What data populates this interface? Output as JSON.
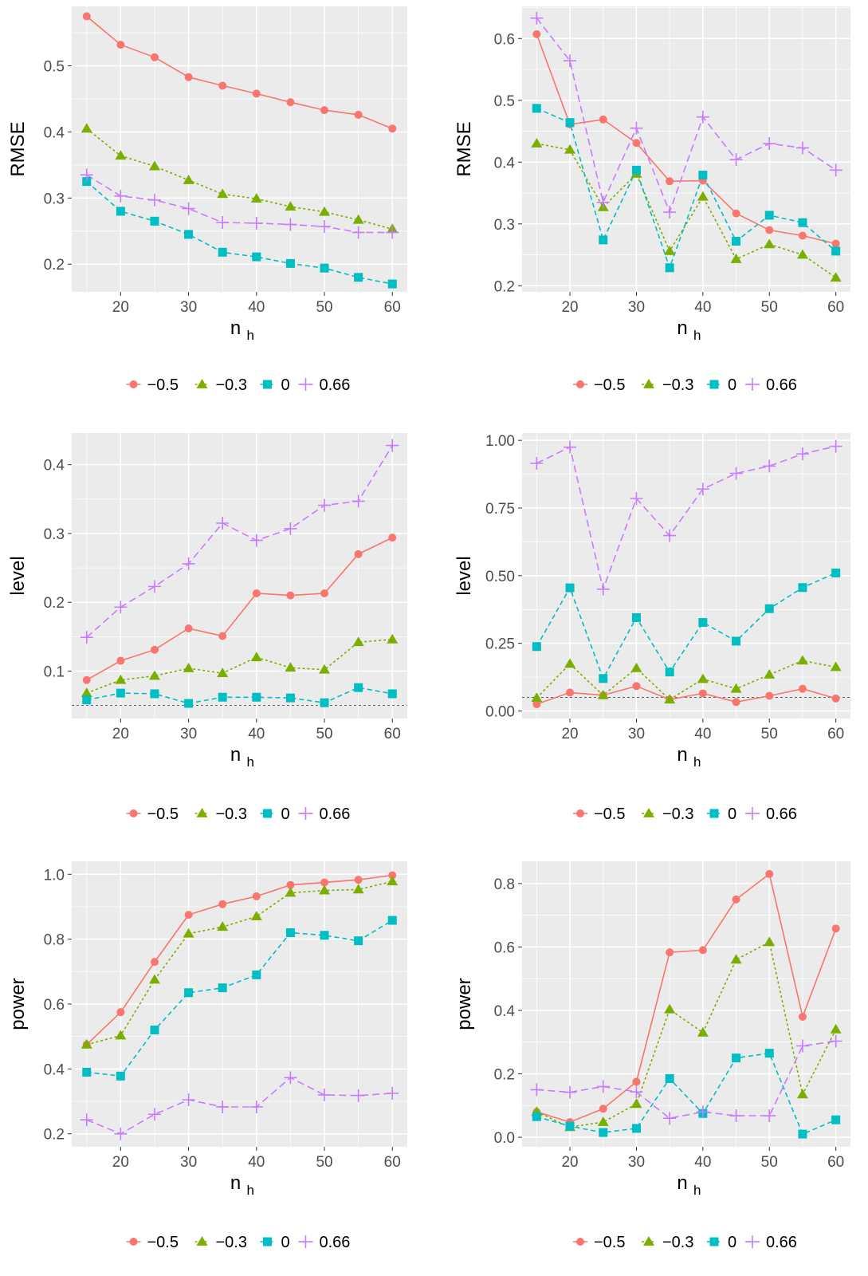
{
  "chart_data": [
    {
      "type": "line",
      "xlabel": "n",
      "xlabel_sub": "h",
      "ylabel": "RMSE",
      "xlim": [
        12.8,
        62.2
      ],
      "ylim": [
        0.158,
        0.59
      ],
      "x": [
        15,
        20,
        25,
        30,
        35,
        40,
        45,
        50,
        55,
        60
      ],
      "xticks": [
        20,
        30,
        40,
        50,
        60
      ],
      "yticks": [
        0.2,
        0.3,
        0.4,
        0.5
      ],
      "ytick_labels": [
        "0.2",
        "0.3",
        "0.4",
        "0.5"
      ],
      "reference_line": null,
      "legend_position": "bottom",
      "series": [
        {
          "name": "−0.5",
          "color": "#F8766D",
          "marker": "circle",
          "dash": "solid",
          "values": [
            0.575,
            0.532,
            0.513,
            0.483,
            0.47,
            0.458,
            0.445,
            0.433,
            0.426,
            0.405
          ]
        },
        {
          "name": "−0.3",
          "color": "#7CAE00",
          "marker": "triangle",
          "dash": "dotted",
          "values": [
            0.405,
            0.364,
            0.348,
            0.327,
            0.306,
            0.299,
            0.287,
            0.279,
            0.267,
            0.253
          ]
        },
        {
          "name": "0",
          "color": "#00BFC4",
          "marker": "square",
          "dash": "dashed",
          "values": [
            0.325,
            0.28,
            0.265,
            0.245,
            0.218,
            0.211,
            0.201,
            0.194,
            0.18,
            0.17
          ]
        },
        {
          "name": "0.66",
          "color": "#C77CFF",
          "marker": "plus",
          "dash": "longdash",
          "values": [
            0.335,
            0.303,
            0.297,
            0.284,
            0.263,
            0.262,
            0.26,
            0.257,
            0.248,
            0.248
          ]
        }
      ]
    },
    {
      "type": "line",
      "xlabel": "n",
      "xlabel_sub": "h",
      "ylabel": "RMSE",
      "xlim": [
        12.8,
        62.2
      ],
      "ylim": [
        0.19,
        0.652
      ],
      "x": [
        15,
        20,
        25,
        30,
        35,
        40,
        45,
        50,
        55,
        60
      ],
      "xticks": [
        20,
        30,
        40,
        50,
        60
      ],
      "yticks": [
        0.2,
        0.3,
        0.4,
        0.5,
        0.6
      ],
      "ytick_labels": [
        "0.2",
        "0.3",
        "0.4",
        "0.5",
        "0.6"
      ],
      "reference_line": null,
      "legend_position": "bottom",
      "series": [
        {
          "name": "−0.5",
          "color": "#F8766D",
          "marker": "circle",
          "dash": "solid",
          "values": [
            0.607,
            0.461,
            0.469,
            0.431,
            0.369,
            0.37,
            0.317,
            0.29,
            0.281,
            0.268
          ]
        },
        {
          "name": "−0.3",
          "color": "#7CAE00",
          "marker": "triangle",
          "dash": "dotted",
          "values": [
            0.43,
            0.42,
            0.327,
            0.381,
            0.256,
            0.344,
            0.243,
            0.267,
            0.25,
            0.213
          ]
        },
        {
          "name": "0",
          "color": "#00BFC4",
          "marker": "square",
          "dash": "dashed",
          "values": [
            0.487,
            0.464,
            0.274,
            0.387,
            0.229,
            0.379,
            0.272,
            0.314,
            0.302,
            0.256
          ]
        },
        {
          "name": "0.66",
          "color": "#C77CFF",
          "marker": "plus",
          "dash": "longdash",
          "values": [
            0.633,
            0.564,
            0.335,
            0.455,
            0.319,
            0.473,
            0.404,
            0.43,
            0.423,
            0.387
          ]
        }
      ]
    },
    {
      "type": "line",
      "xlabel": "n",
      "xlabel_sub": "h",
      "ylabel": "level",
      "xlim": [
        12.8,
        62.2
      ],
      "ylim": [
        0.031,
        0.446
      ],
      "x": [
        15,
        20,
        25,
        30,
        35,
        40,
        45,
        50,
        55,
        60
      ],
      "xticks": [
        20,
        30,
        40,
        50,
        60
      ],
      "yticks": [
        0.1,
        0.2,
        0.3,
        0.4
      ],
      "ytick_labels": [
        "0.1",
        "0.2",
        "0.3",
        "0.4"
      ],
      "reference_line": 0.05,
      "legend_position": "bottom",
      "series": [
        {
          "name": "−0.5",
          "color": "#F8766D",
          "marker": "circle",
          "dash": "solid",
          "values": [
            0.087,
            0.115,
            0.131,
            0.162,
            0.151,
            0.213,
            0.21,
            0.213,
            0.27,
            0.294
          ]
        },
        {
          "name": "−0.3",
          "color": "#7CAE00",
          "marker": "triangle",
          "dash": "dotted",
          "values": [
            0.068,
            0.087,
            0.093,
            0.104,
            0.097,
            0.12,
            0.105,
            0.102,
            0.142,
            0.146
          ]
        },
        {
          "name": "0",
          "color": "#00BFC4",
          "marker": "square",
          "dash": "dashed",
          "values": [
            0.058,
            0.068,
            0.067,
            0.053,
            0.062,
            0.062,
            0.061,
            0.054,
            0.076,
            0.067
          ]
        },
        {
          "name": "0.66",
          "color": "#C77CFF",
          "marker": "plus",
          "dash": "longdash",
          "values": [
            0.149,
            0.193,
            0.223,
            0.256,
            0.315,
            0.29,
            0.307,
            0.341,
            0.347,
            0.428
          ]
        }
      ]
    },
    {
      "type": "line",
      "xlabel": "n",
      "xlabel_sub": "h",
      "ylabel": "level",
      "xlim": [
        12.8,
        62.2
      ],
      "ylim": [
        -0.028,
        1.027
      ],
      "x": [
        15,
        20,
        25,
        30,
        35,
        40,
        45,
        50,
        55,
        60
      ],
      "xticks": [
        20,
        30,
        40,
        50,
        60
      ],
      "yticks": [
        0.0,
        0.25,
        0.5,
        0.75,
        1.0
      ],
      "ytick_labels": [
        "0.00",
        "0.25",
        "0.50",
        "0.75",
        "1.00"
      ],
      "reference_line": 0.05,
      "legend_position": "bottom",
      "series": [
        {
          "name": "−0.5",
          "color": "#F8766D",
          "marker": "circle",
          "dash": "solid",
          "values": [
            0.025,
            0.068,
            0.058,
            0.092,
            0.042,
            0.065,
            0.033,
            0.056,
            0.082,
            0.046
          ]
        },
        {
          "name": "−0.3",
          "color": "#7CAE00",
          "marker": "triangle",
          "dash": "dotted",
          "values": [
            0.048,
            0.174,
            0.058,
            0.158,
            0.042,
            0.118,
            0.082,
            0.134,
            0.186,
            0.162
          ]
        },
        {
          "name": "0",
          "color": "#00BFC4",
          "marker": "square",
          "dash": "dashed",
          "values": [
            0.238,
            0.455,
            0.12,
            0.345,
            0.144,
            0.327,
            0.258,
            0.378,
            0.456,
            0.51
          ]
        },
        {
          "name": "0.66",
          "color": "#C77CFF",
          "marker": "plus",
          "dash": "longdash",
          "values": [
            0.915,
            0.975,
            0.45,
            0.785,
            0.648,
            0.82,
            0.878,
            0.905,
            0.95,
            0.978
          ]
        }
      ]
    },
    {
      "type": "line",
      "xlabel": "n",
      "xlabel_sub": "h",
      "ylabel": "power",
      "xlim": [
        12.8,
        62.2
      ],
      "ylim": [
        0.16,
        1.04
      ],
      "x": [
        15,
        20,
        25,
        30,
        35,
        40,
        45,
        50,
        55,
        60
      ],
      "xticks": [
        20,
        30,
        40,
        50,
        60
      ],
      "yticks": [
        0.2,
        0.4,
        0.6,
        0.8,
        1.0
      ],
      "ytick_labels": [
        "0.2",
        "0.4",
        "0.6",
        "0.8",
        "1.0"
      ],
      "reference_line": null,
      "legend_position": "bottom",
      "series": [
        {
          "name": "−0.5",
          "color": "#F8766D",
          "marker": "circle",
          "dash": "solid",
          "values": [
            0.475,
            0.575,
            0.73,
            0.875,
            0.908,
            0.932,
            0.967,
            0.975,
            0.983,
            0.997
          ]
        },
        {
          "name": "−0.3",
          "color": "#7CAE00",
          "marker": "triangle",
          "dash": "dotted",
          "values": [
            0.475,
            0.503,
            0.675,
            0.817,
            0.838,
            0.87,
            0.943,
            0.95,
            0.953,
            0.978
          ]
        },
        {
          "name": "0",
          "color": "#00BFC4",
          "marker": "square",
          "dash": "dashed",
          "values": [
            0.39,
            0.378,
            0.52,
            0.635,
            0.65,
            0.69,
            0.82,
            0.812,
            0.795,
            0.858
          ]
        },
        {
          "name": "0.66",
          "color": "#C77CFF",
          "marker": "plus",
          "dash": "longdash",
          "values": [
            0.243,
            0.2,
            0.26,
            0.305,
            0.283,
            0.283,
            0.373,
            0.32,
            0.318,
            0.325
          ]
        }
      ]
    },
    {
      "type": "line",
      "xlabel": "n",
      "xlabel_sub": "h",
      "ylabel": "power",
      "xlim": [
        12.8,
        62.2
      ],
      "ylim": [
        -0.03,
        0.87
      ],
      "x": [
        15,
        20,
        25,
        30,
        35,
        40,
        45,
        50,
        55,
        60
      ],
      "xticks": [
        20,
        30,
        40,
        50,
        60
      ],
      "yticks": [
        0.0,
        0.2,
        0.4,
        0.6,
        0.8
      ],
      "ytick_labels": [
        "0.0",
        "0.2",
        "0.4",
        "0.6",
        "0.8"
      ],
      "reference_line": null,
      "legend_position": "bottom",
      "series": [
        {
          "name": "−0.5",
          "color": "#F8766D",
          "marker": "circle",
          "dash": "solid",
          "values": [
            0.08,
            0.048,
            0.09,
            0.175,
            0.583,
            0.59,
            0.75,
            0.83,
            0.38,
            0.658
          ]
        },
        {
          "name": "−0.3",
          "color": "#7CAE00",
          "marker": "triangle",
          "dash": "dotted",
          "values": [
            0.08,
            0.032,
            0.048,
            0.105,
            0.403,
            0.33,
            0.56,
            0.615,
            0.135,
            0.34
          ]
        },
        {
          "name": "0",
          "color": "#00BFC4",
          "marker": "square",
          "dash": "dashed",
          "values": [
            0.065,
            0.035,
            0.015,
            0.028,
            0.185,
            0.075,
            0.25,
            0.265,
            0.01,
            0.055
          ]
        },
        {
          "name": "0.66",
          "color": "#C77CFF",
          "marker": "plus",
          "dash": "longdash",
          "values": [
            0.15,
            0.142,
            0.16,
            0.143,
            0.06,
            0.08,
            0.068,
            0.068,
            0.288,
            0.303
          ]
        }
      ]
    }
  ]
}
